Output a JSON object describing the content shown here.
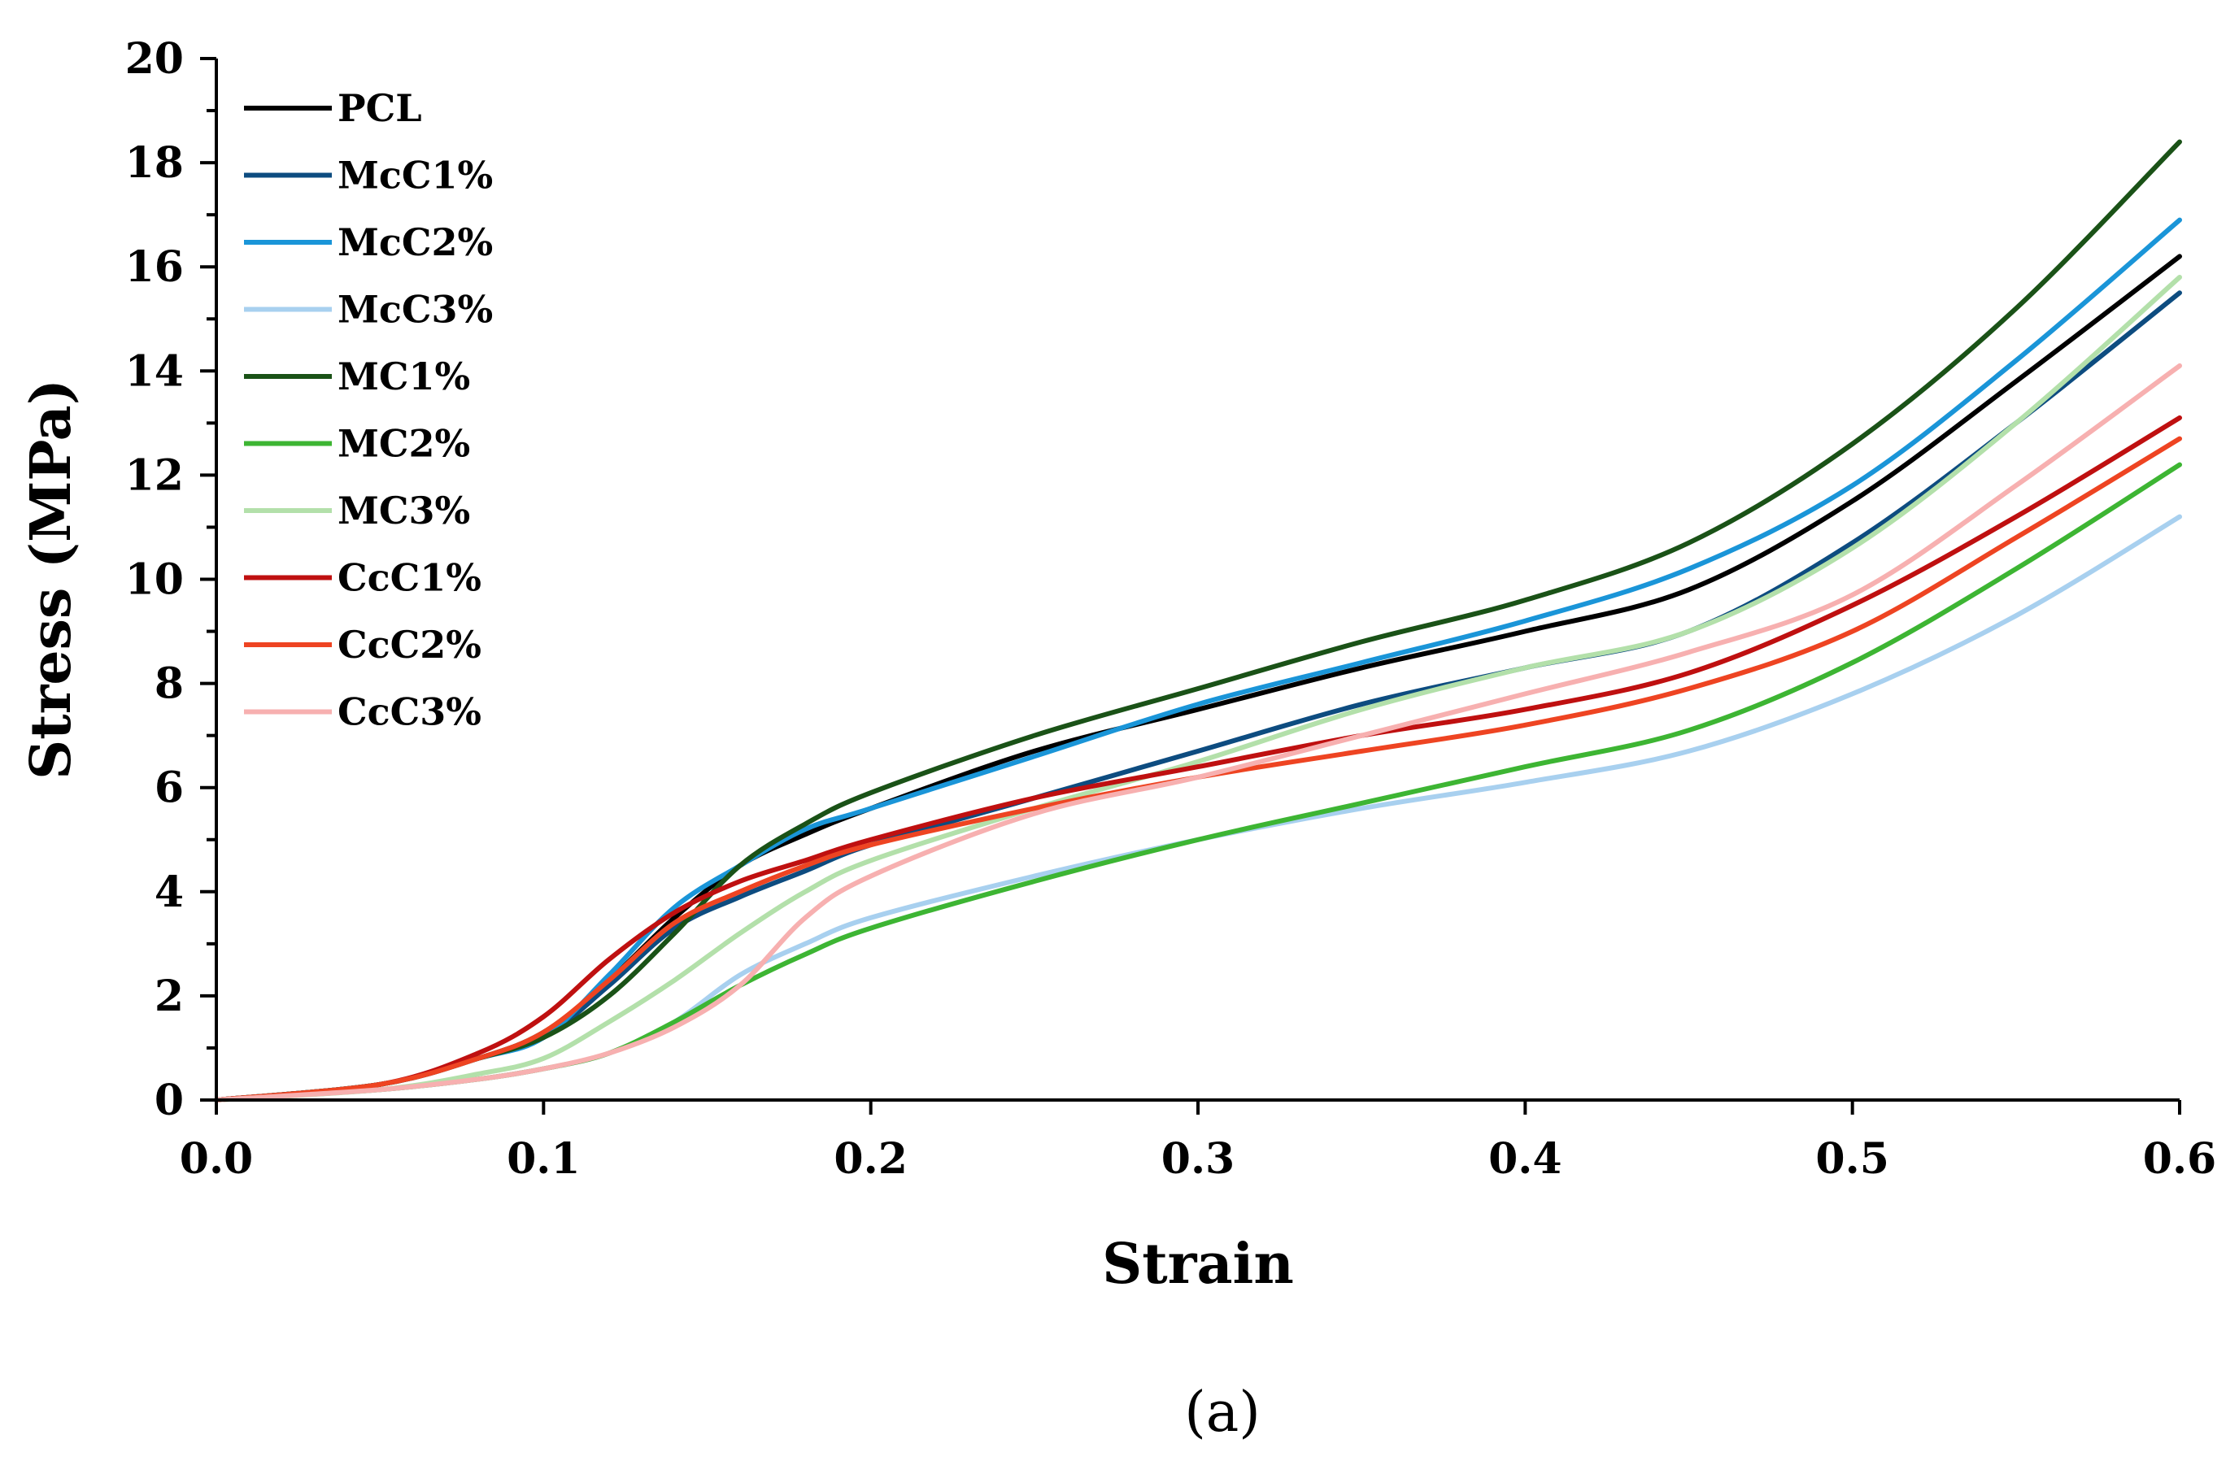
{
  "chart_data": {
    "type": "line",
    "xlabel": "Strain",
    "ylabel": "Stress (MPa)",
    "xlim": [
      0,
      0.6
    ],
    "ylim": [
      0,
      20
    ],
    "x_ticks": [
      "0.0",
      "0.1",
      "0.2",
      "0.3",
      "0.4",
      "0.5",
      "0.6"
    ],
    "y_ticks": [
      "0",
      "2",
      "4",
      "6",
      "8",
      "10",
      "12",
      "14",
      "16",
      "18",
      "20"
    ],
    "grid": false,
    "legend_position": "top-left",
    "panel_label": "(a)",
    "x": [
      0.0,
      0.05,
      0.08,
      0.1,
      0.12,
      0.14,
      0.16,
      0.18,
      0.2,
      0.25,
      0.3,
      0.35,
      0.4,
      0.45,
      0.5,
      0.55,
      0.6
    ],
    "series": [
      {
        "name": "PCL",
        "color": "#000000",
        "values": [
          0.0,
          0.3,
          0.8,
          1.3,
          2.3,
          3.5,
          4.5,
          5.1,
          5.6,
          6.7,
          7.5,
          8.3,
          9.0,
          9.8,
          11.5,
          13.8,
          16.2
        ]
      },
      {
        "name": "McC1%",
        "color": "#0d4c80",
        "values": [
          0.0,
          0.3,
          0.8,
          1.2,
          2.2,
          3.3,
          3.9,
          4.4,
          4.9,
          5.8,
          6.7,
          7.6,
          8.3,
          9.0,
          10.7,
          13.0,
          15.5
        ]
      },
      {
        "name": "McC2%",
        "color": "#1a95d8",
        "values": [
          0.0,
          0.3,
          0.8,
          1.2,
          2.4,
          3.7,
          4.5,
          5.2,
          5.6,
          6.6,
          7.6,
          8.4,
          9.2,
          10.2,
          11.8,
          14.2,
          16.9
        ]
      },
      {
        "name": "McC3%",
        "color": "#a8d0ef",
        "values": [
          0.0,
          0.2,
          0.4,
          0.6,
          0.9,
          1.5,
          2.4,
          3.0,
          3.5,
          4.3,
          5.0,
          5.6,
          6.1,
          6.7,
          7.8,
          9.3,
          11.2
        ]
      },
      {
        "name": "MC1%",
        "color": "#1a5217",
        "values": [
          0.0,
          0.3,
          0.8,
          1.2,
          2.0,
          3.2,
          4.5,
          5.3,
          5.9,
          7.0,
          7.9,
          8.8,
          9.6,
          10.7,
          12.6,
          15.2,
          18.4
        ]
      },
      {
        "name": "MC2%",
        "color": "#3db533",
        "values": [
          0.0,
          0.2,
          0.4,
          0.6,
          0.9,
          1.5,
          2.2,
          2.8,
          3.3,
          4.2,
          5.0,
          5.7,
          6.4,
          7.1,
          8.4,
          10.2,
          12.2
        ]
      },
      {
        "name": "MC3%",
        "color": "#b3e0aa",
        "values": [
          0.0,
          0.2,
          0.5,
          0.8,
          1.5,
          2.3,
          3.2,
          4.0,
          4.6,
          5.6,
          6.5,
          7.5,
          8.3,
          9.0,
          10.6,
          13.0,
          15.8
        ]
      },
      {
        "name": "CcC1%",
        "color": "#bf1010",
        "values": [
          0.0,
          0.3,
          0.9,
          1.6,
          2.7,
          3.6,
          4.2,
          4.6,
          5.0,
          5.8,
          6.4,
          7.0,
          7.5,
          8.2,
          9.5,
          11.2,
          13.1
        ]
      },
      {
        "name": "CcC2%",
        "color": "#ee4422",
        "values": [
          0.0,
          0.3,
          0.8,
          1.3,
          2.3,
          3.4,
          4.0,
          4.5,
          4.9,
          5.6,
          6.2,
          6.7,
          7.2,
          7.9,
          9.0,
          10.8,
          12.7
        ]
      },
      {
        "name": "CcC3%",
        "color": "#f7b0b0",
        "values": [
          0.0,
          0.2,
          0.4,
          0.6,
          0.9,
          1.4,
          2.2,
          3.5,
          4.3,
          5.5,
          6.2,
          7.0,
          7.8,
          8.6,
          9.7,
          11.8,
          14.1
        ]
      }
    ]
  }
}
